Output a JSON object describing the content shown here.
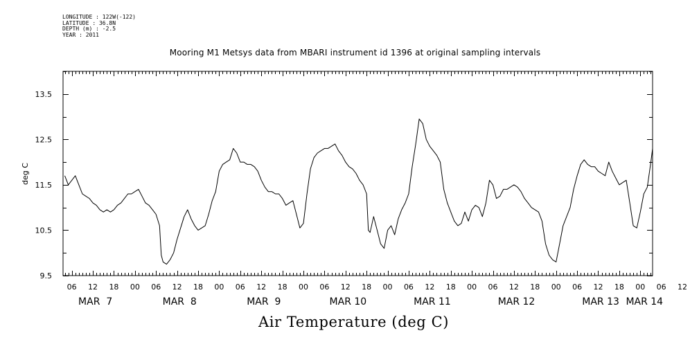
{
  "metadata": {
    "longitude": "LONGITUDE : 122W(-122)",
    "latitude": "LATITUDE : 36.8N",
    "depth": "DEPTH (m) : -2.5",
    "year": "YEAR : 2011"
  },
  "chart_data": {
    "type": "line",
    "title": "Mooring M1 Metsys data from MBARI instrument id 1396 at original sampling intervals",
    "xlabel": "Air Temperature (deg C)",
    "ylabel": "deg C",
    "ylim": [
      9.5,
      14.0
    ],
    "xlim_hours": [
      3.5,
      171.5
    ],
    "y_ticks": [
      "9.5",
      "10.5",
      "11.5",
      "12.5",
      "13.5"
    ],
    "x_hour_ticks": [
      "06",
      "12",
      "18",
      "00",
      "06",
      "12",
      "18",
      "00",
      "06",
      "12",
      "18",
      "00",
      "06",
      "12",
      "18",
      "00",
      "06",
      "12",
      "18",
      "00",
      "06",
      "12",
      "18",
      "00",
      "06",
      "12",
      "18",
      "00",
      "06",
      "12",
      "18",
      "00"
    ],
    "x_date_labels": [
      "MAR  7",
      "MAR  8",
      "MAR  9",
      "MAR 10",
      "MAR 11",
      "MAR 12",
      "MAR 13",
      "MAR 14"
    ],
    "series": [
      {
        "values": [
          [
            4,
            11.7
          ],
          [
            5,
            11.5
          ],
          [
            6,
            11.6
          ],
          [
            7,
            11.7
          ],
          [
            8,
            11.5
          ],
          [
            9,
            11.3
          ],
          [
            10,
            11.25
          ],
          [
            11,
            11.2
          ],
          [
            12,
            11.1
          ],
          [
            13,
            11.05
          ],
          [
            14,
            10.95
          ],
          [
            15,
            10.9
          ],
          [
            16,
            10.95
          ],
          [
            17,
            10.9
          ],
          [
            18,
            10.95
          ],
          [
            19,
            11.05
          ],
          [
            20,
            11.1
          ],
          [
            21,
            11.2
          ],
          [
            22,
            11.3
          ],
          [
            23,
            11.3
          ],
          [
            24,
            11.35
          ],
          [
            25,
            11.4
          ],
          [
            26,
            11.25
          ],
          [
            27,
            11.1
          ],
          [
            28,
            11.05
          ],
          [
            29,
            10.95
          ],
          [
            30,
            10.85
          ],
          [
            31,
            10.6
          ],
          [
            31.5,
            9.95
          ],
          [
            32,
            9.8
          ],
          [
            33,
            9.75
          ],
          [
            34,
            9.85
          ],
          [
            35,
            10.0
          ],
          [
            36,
            10.3
          ],
          [
            37,
            10.55
          ],
          [
            38,
            10.8
          ],
          [
            39,
            10.95
          ],
          [
            40,
            10.75
          ],
          [
            41,
            10.6
          ],
          [
            42,
            10.5
          ],
          [
            43,
            10.55
          ],
          [
            44,
            10.6
          ],
          [
            45,
            10.85
          ],
          [
            46,
            11.15
          ],
          [
            47,
            11.35
          ],
          [
            48,
            11.8
          ],
          [
            49,
            11.95
          ],
          [
            50,
            12.0
          ],
          [
            51,
            12.05
          ],
          [
            52,
            12.3
          ],
          [
            53,
            12.2
          ],
          [
            54,
            12.0
          ],
          [
            55,
            12.0
          ],
          [
            56,
            11.95
          ],
          [
            57,
            11.95
          ],
          [
            58,
            11.9
          ],
          [
            59,
            11.8
          ],
          [
            60,
            11.6
          ],
          [
            61,
            11.45
          ],
          [
            62,
            11.35
          ],
          [
            63,
            11.35
          ],
          [
            64,
            11.3
          ],
          [
            65,
            11.3
          ],
          [
            66,
            11.2
          ],
          [
            67,
            11.05
          ],
          [
            68,
            11.1
          ],
          [
            69,
            11.15
          ],
          [
            70,
            10.85
          ],
          [
            71,
            10.55
          ],
          [
            72,
            10.65
          ],
          [
            73,
            11.3
          ],
          [
            74,
            11.85
          ],
          [
            75,
            12.1
          ],
          [
            76,
            12.2
          ],
          [
            77,
            12.25
          ],
          [
            78,
            12.3
          ],
          [
            79,
            12.3
          ],
          [
            80,
            12.35
          ],
          [
            81,
            12.4
          ],
          [
            82,
            12.25
          ],
          [
            83,
            12.15
          ],
          [
            84,
            12.0
          ],
          [
            85,
            11.9
          ],
          [
            86,
            11.85
          ],
          [
            87,
            11.75
          ],
          [
            88,
            11.6
          ],
          [
            89,
            11.5
          ],
          [
            90,
            11.3
          ],
          [
            90.5,
            10.5
          ],
          [
            91,
            10.45
          ],
          [
            92,
            10.8
          ],
          [
            93,
            10.5
          ],
          [
            94,
            10.2
          ],
          [
            95,
            10.1
          ],
          [
            96,
            10.5
          ],
          [
            97,
            10.6
          ],
          [
            98,
            10.4
          ],
          [
            99,
            10.75
          ],
          [
            100,
            10.95
          ],
          [
            101,
            11.1
          ],
          [
            102,
            11.3
          ],
          [
            103,
            11.9
          ],
          [
            104,
            12.4
          ],
          [
            105,
            12.95
          ],
          [
            106,
            12.85
          ],
          [
            107,
            12.5
          ],
          [
            108,
            12.35
          ],
          [
            109,
            12.25
          ],
          [
            110,
            12.15
          ],
          [
            111,
            12.0
          ],
          [
            112,
            11.4
          ],
          [
            113,
            11.1
          ],
          [
            114,
            10.9
          ],
          [
            115,
            10.7
          ],
          [
            116,
            10.6
          ],
          [
            117,
            10.65
          ],
          [
            118,
            10.9
          ],
          [
            119,
            10.7
          ],
          [
            120,
            10.95
          ],
          [
            121,
            11.05
          ],
          [
            122,
            11.0
          ],
          [
            123,
            10.8
          ],
          [
            124,
            11.1
          ],
          [
            125,
            11.6
          ],
          [
            126,
            11.5
          ],
          [
            127,
            11.2
          ],
          [
            128,
            11.25
          ],
          [
            129,
            11.4
          ],
          [
            130,
            11.4
          ],
          [
            131,
            11.45
          ],
          [
            132,
            11.5
          ],
          [
            133,
            11.45
          ],
          [
            134,
            11.35
          ],
          [
            135,
            11.2
          ],
          [
            136,
            11.1
          ],
          [
            137,
            11.0
          ],
          [
            138,
            10.95
          ],
          [
            139,
            10.9
          ],
          [
            140,
            10.7
          ],
          [
            141,
            10.2
          ],
          [
            142,
            9.95
          ],
          [
            143,
            9.85
          ],
          [
            144,
            9.8
          ],
          [
            145,
            10.2
          ],
          [
            146,
            10.6
          ],
          [
            147,
            10.8
          ],
          [
            148,
            11.0
          ],
          [
            149,
            11.4
          ],
          [
            150,
            11.7
          ],
          [
            151,
            11.95
          ],
          [
            152,
            12.05
          ],
          [
            153,
            11.95
          ],
          [
            154,
            11.9
          ],
          [
            155,
            11.9
          ],
          [
            156,
            11.8
          ],
          [
            157,
            11.75
          ],
          [
            158,
            11.7
          ],
          [
            159,
            12.0
          ],
          [
            160,
            11.8
          ],
          [
            161,
            11.65
          ],
          [
            162,
            11.5
          ],
          [
            163,
            11.55
          ],
          [
            164,
            11.6
          ],
          [
            165,
            11.1
          ],
          [
            166,
            10.6
          ],
          [
            167,
            10.55
          ],
          [
            168,
            10.9
          ],
          [
            169,
            11.3
          ],
          [
            170,
            11.45
          ],
          [
            171,
            12.0
          ],
          [
            171.5,
            12.3
          ]
        ]
      }
    ],
    "grid": false,
    "line_color": "#000000"
  }
}
